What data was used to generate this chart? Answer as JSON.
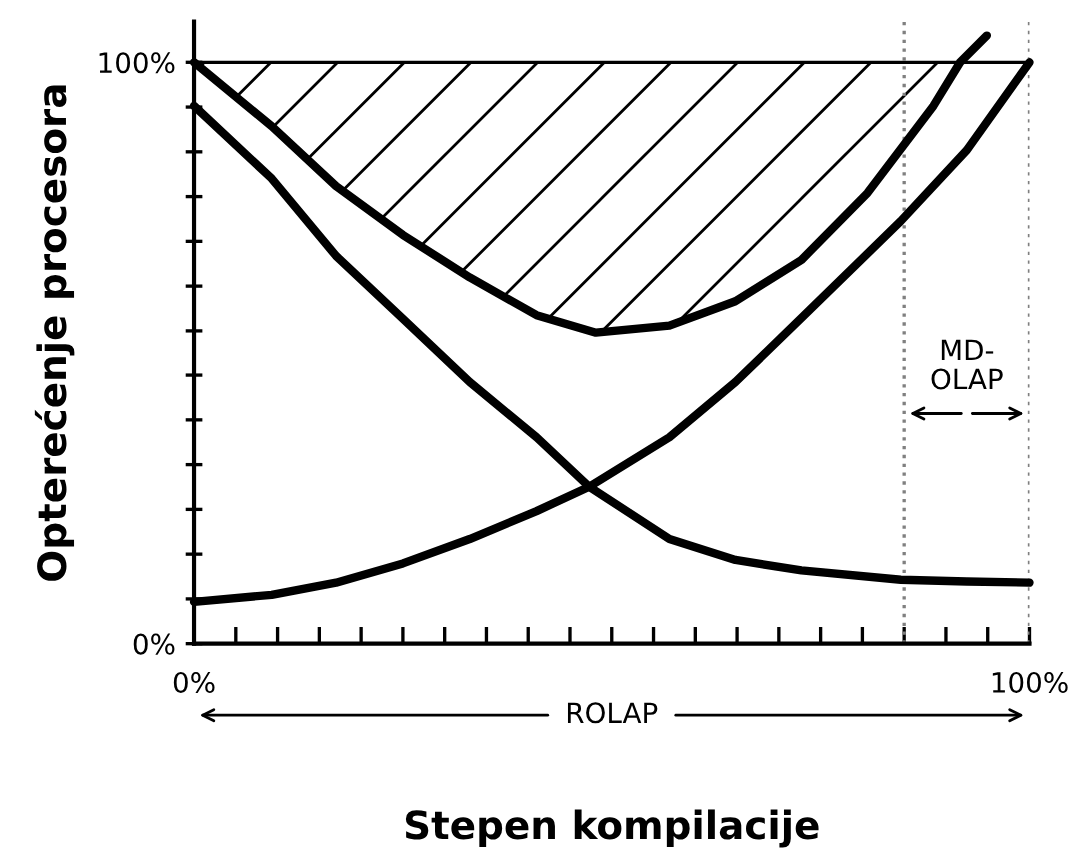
{
  "chart_data": {
    "type": "line",
    "xlabel": "Stepen kompilacije",
    "ylabel": "Opterećenje procesora",
    "x": [
      0,
      9.3,
      17,
      25,
      33,
      41,
      47.3,
      56.9,
      64.8,
      72.7,
      84.6,
      92.5,
      100
    ],
    "series": [
      {
        "color": "#000000",
        "values": [
          92.5,
          80,
          66.7,
          55.9,
          45,
          35.5,
          27,
          18,
          14.4,
          12.6,
          11,
          10.7,
          10.5
        ]
      },
      {
        "color": "#000000",
        "values": [
          7.2,
          8.4,
          10.5,
          13.8,
          18,
          22.8,
          27,
          35.5,
          45,
          56,
          72.7,
          84.9,
          100
        ]
      },
      {
        "color": "#000000",
        "x": [
          0,
          9.3,
          17,
          25,
          33,
          41,
          48.1,
          56.9,
          64.8,
          72.7,
          80.6,
          88.5,
          91.7,
          94.9
        ],
        "values": [
          100,
          89,
          78.7,
          70.3,
          63,
          56.5,
          53.5,
          54.7,
          58.9,
          66,
          77.5,
          92.5,
          100,
          104.6
        ],
        "lower": [
          100,
          89,
          78.7,
          70.3,
          63,
          56.5,
          53.5,
          54.7,
          58.9,
          66,
          77.5,
          92.5,
          100,
          null
        ],
        "upper": [
          100,
          100,
          100,
          100,
          100,
          100,
          100,
          100,
          100,
          100,
          100,
          100,
          100,
          null
        ]
      }
    ],
    "xlim": [
      0,
      100
    ],
    "ylim": [
      0,
      107
    ],
    "xticks": [
      {
        "value": 0,
        "label": "0%"
      },
      {
        "value": 5,
        "label": null
      },
      {
        "value": 10,
        "label": null
      },
      {
        "value": 15,
        "label": null
      },
      {
        "value": 20,
        "label": null
      },
      {
        "value": 25,
        "label": null
      },
      {
        "value": 30,
        "label": null
      },
      {
        "value": 35,
        "label": null
      },
      {
        "value": 40,
        "label": null
      },
      {
        "value": 45,
        "label": null
      },
      {
        "value": 50,
        "label": null
      },
      {
        "value": 55,
        "label": null
      },
      {
        "value": 60,
        "label": null
      },
      {
        "value": 65,
        "label": null
      },
      {
        "value": 70,
        "label": null
      },
      {
        "value": 75,
        "label": null
      },
      {
        "value": 80,
        "label": null
      },
      {
        "value": 85,
        "label": null
      },
      {
        "value": 90,
        "label": null
      },
      {
        "value": 95,
        "label": null
      },
      {
        "value": 100,
        "label": "100%"
      }
    ],
    "yticks": [
      {
        "value": 0,
        "label": "0%"
      },
      {
        "value": 7.7,
        "label": null
      },
      {
        "value": 15.4,
        "label": null
      },
      {
        "value": 23.1,
        "label": null
      },
      {
        "value": 30.8,
        "label": null
      },
      {
        "value": 38.5,
        "label": null
      },
      {
        "value": 46.2,
        "label": null
      },
      {
        "value": 53.8,
        "label": null
      },
      {
        "value": 61.5,
        "label": null
      },
      {
        "value": 69.2,
        "label": null
      },
      {
        "value": 76.9,
        "label": null
      },
      {
        "value": 84.6,
        "label": null
      },
      {
        "value": 92.3,
        "label": null
      },
      {
        "value": 100,
        "label": "100%"
      }
    ],
    "ref_lines": [
      {
        "axis": "y",
        "value": 100,
        "color": "#000000",
        "line_style": "solid"
      },
      {
        "axis": "x",
        "value": 85,
        "color": "#808080",
        "line_style": "dotted"
      },
      {
        "axis": "x",
        "value": 100,
        "color": "#808080",
        "line_style": "dotted"
      }
    ],
    "annotations": [
      "MD-\nOLAP",
      "ROLAP"
    ],
    "grid": false,
    "legend": false,
    "marker": "none",
    "line_style": "solid"
  }
}
